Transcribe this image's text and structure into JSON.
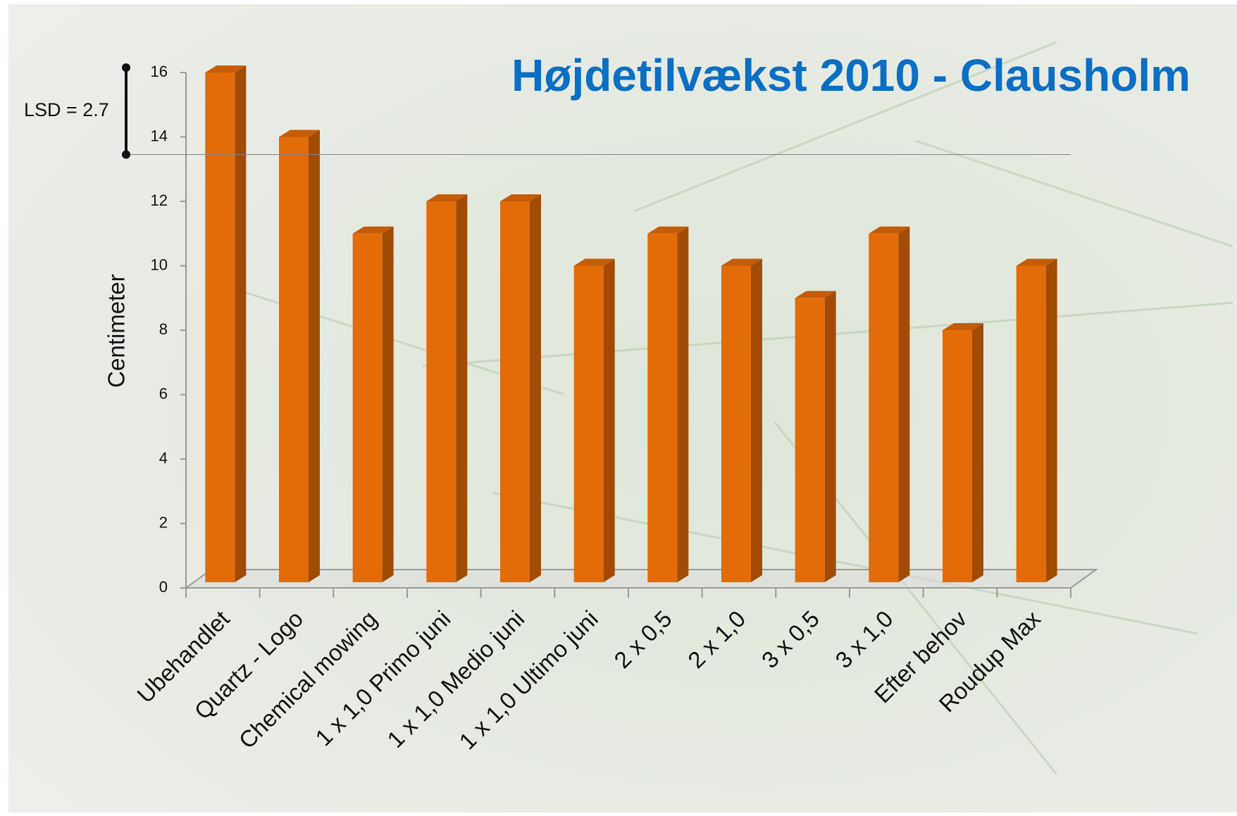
{
  "chart_data": {
    "type": "bar3d",
    "title": "Højdetilvækst 2010 - Clausholm",
    "y_label": "Centimeter",
    "categories": [
      "Ubehandlet",
      "Quartz - Logo",
      "Chemical mowing",
      "1 x 1,0  Primo juni",
      "1 x 1,0  Medio juni",
      "1 x 1,0  Ultimo juni",
      "2 x 0,5",
      "2 x 1,0",
      "3 x 0,5",
      "3 x 1,0",
      "Efter behov",
      "Roudup Max"
    ],
    "values": [
      16,
      14,
      11,
      12,
      12,
      10,
      11,
      10,
      9,
      11,
      8,
      10
    ],
    "color": "#e36c09",
    "ylim": [
      0,
      16
    ],
    "yticks": [
      0,
      2,
      4,
      6,
      8,
      10,
      12,
      14,
      16
    ],
    "lsd": {
      "value": 2.7,
      "label": "LSD = 2.7"
    }
  }
}
